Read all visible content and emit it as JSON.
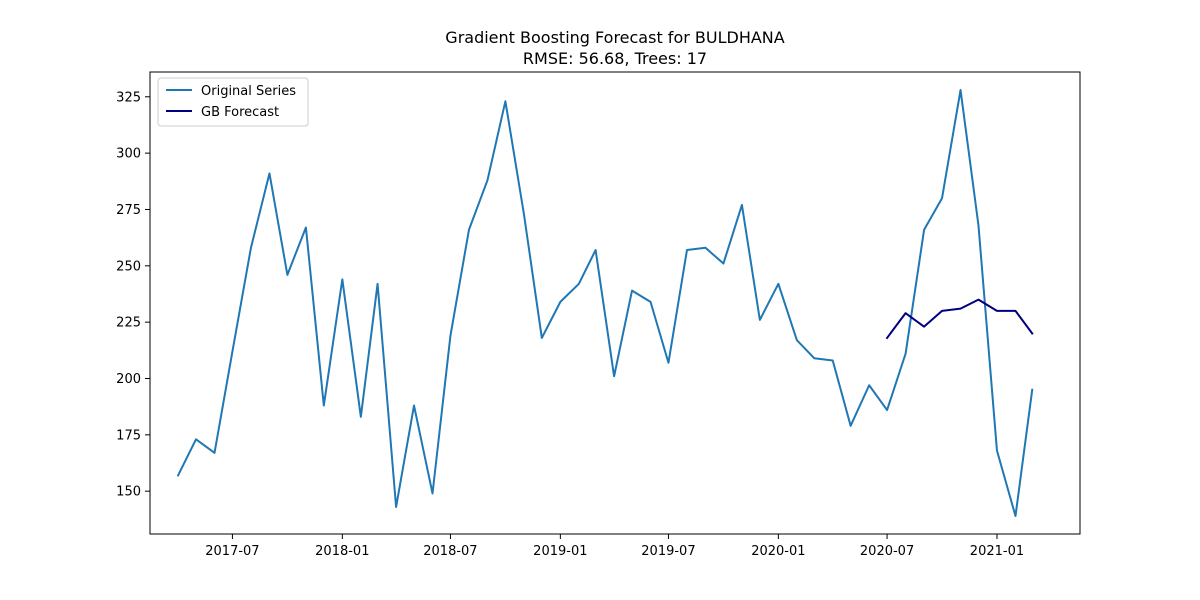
{
  "chart_data": {
    "type": "line",
    "title": "Gradient Boosting Forecast for BULDHANA",
    "subtitle": "RMSE: 56.68, Trees: 17",
    "xlabel": "",
    "ylabel": "",
    "grid": false,
    "legend_position": "top-left",
    "xlim": [
      "2017-02-13",
      "2021-05-20"
    ],
    "ylim": [
      131,
      336
    ],
    "x_ticks": [
      "2017-07-01",
      "2018-01-01",
      "2018-07-01",
      "2019-01-01",
      "2019-07-01",
      "2020-01-01",
      "2020-07-01",
      "2021-01-01"
    ],
    "x_tick_labels": [
      "2017-07",
      "2018-01",
      "2018-07",
      "2019-01",
      "2019-07",
      "2020-01",
      "2020-07",
      "2021-01"
    ],
    "y_ticks": [
      150,
      175,
      200,
      225,
      250,
      275,
      300,
      325
    ],
    "y_tick_labels": [
      "150",
      "175",
      "200",
      "225",
      "250",
      "275",
      "300",
      "325"
    ],
    "series": [
      {
        "name": "Original Series",
        "color": "#1f77b4",
        "x": [
          "2017-04-01",
          "2017-05-01",
          "2017-06-01",
          "2017-07-01",
          "2017-08-01",
          "2017-09-01",
          "2017-10-01",
          "2017-11-01",
          "2017-12-01",
          "2018-01-01",
          "2018-02-01",
          "2018-03-01",
          "2018-04-01",
          "2018-05-01",
          "2018-06-01",
          "2018-07-01",
          "2018-08-01",
          "2018-09-01",
          "2018-10-01",
          "2018-11-01",
          "2018-12-01",
          "2019-01-01",
          "2019-02-01",
          "2019-03-01",
          "2019-04-01",
          "2019-05-01",
          "2019-06-01",
          "2019-07-01",
          "2019-08-01",
          "2019-09-01",
          "2019-10-01",
          "2019-11-01",
          "2019-12-01",
          "2020-01-01",
          "2020-02-01",
          "2020-03-01",
          "2020-04-01",
          "2020-05-01",
          "2020-06-01",
          "2020-07-01",
          "2020-08-01",
          "2020-09-01",
          "2020-10-01",
          "2020-11-01",
          "2020-12-01",
          "2021-01-01",
          "2021-02-01",
          "2021-03-01"
        ],
        "values": [
          157,
          173,
          167,
          212,
          258,
          291,
          246,
          267,
          188,
          244,
          183,
          242,
          143,
          188,
          149,
          219,
          266,
          288,
          323,
          273,
          218,
          234,
          242,
          257,
          201,
          239,
          234,
          207,
          257,
          258,
          251,
          277,
          226,
          242,
          217,
          209,
          208,
          179,
          197,
          186,
          211,
          266,
          280,
          328,
          268,
          168,
          139,
          195
        ]
      },
      {
        "name": "GB Forecast",
        "color": "#000080",
        "x": [
          "2020-07-01",
          "2020-08-01",
          "2020-09-01",
          "2020-10-01",
          "2020-11-01",
          "2020-12-01",
          "2021-01-01",
          "2021-02-01",
          "2021-03-01"
        ],
        "values": [
          218,
          229,
          223,
          230,
          231,
          235,
          230,
          230,
          220
        ]
      }
    ]
  }
}
